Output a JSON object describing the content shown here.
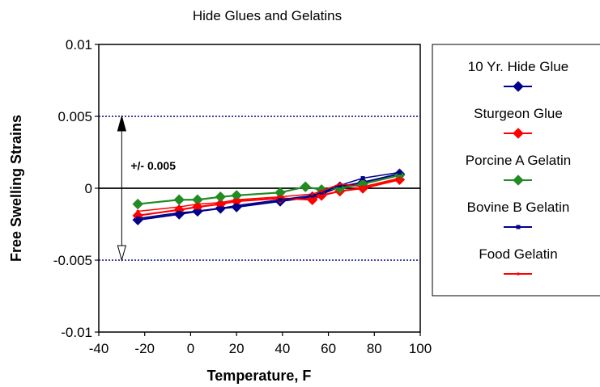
{
  "chart_data": {
    "type": "line",
    "title": "Hide Glues and Gelatins",
    "xlabel": "Temperature, F",
    "ylabel": "Free Swelling Strains",
    "xlim": [
      -40,
      100
    ],
    "ylim": [
      -0.01,
      0.01
    ],
    "xticks": [
      -40,
      -20,
      0,
      20,
      40,
      60,
      80,
      100
    ],
    "yticks": [
      {
        "value": -0.01,
        "label": "-0.01"
      },
      {
        "value": -0.005,
        "label": "-0.005"
      },
      {
        "value": 0,
        "label": "0"
      },
      {
        "value": 0.005,
        "label": "0.005"
      },
      {
        "value": 0.01,
        "label": "0.01"
      }
    ],
    "reference_lines": [
      0.005,
      -0.005
    ],
    "annotation": {
      "text": "+/- 0.005",
      "x": -30,
      "y_top": 0.005,
      "y_bottom": -0.005
    },
    "legend_position": "right",
    "series": [
      {
        "name": "10 Yr. Hide Glue",
        "color": "#00008b",
        "marker": "diamond",
        "x": [
          -23,
          -5,
          3,
          13,
          20,
          39,
          53,
          57,
          65,
          75,
          91
        ],
        "y": [
          -0.0022,
          -0.0018,
          -0.0016,
          -0.0014,
          -0.0013,
          -0.0009,
          -0.0006,
          -0.0004,
          0.0001,
          0.0004,
          0.001
        ]
      },
      {
        "name": "Sturgeon Glue",
        "color": "#ff0000",
        "marker": "diamond",
        "x": [
          -23,
          -5,
          3,
          13,
          20,
          39,
          53,
          57,
          65,
          75,
          91
        ],
        "y": [
          -0.0019,
          -0.0015,
          -0.0013,
          -0.0011,
          -0.0009,
          -0.0007,
          -0.0008,
          -0.0005,
          -0.0002,
          0.0,
          0.0006
        ]
      },
      {
        "name": "Porcine A Gelatin",
        "color": "#228b22",
        "marker": "diamond",
        "x": [
          -23,
          -5,
          3,
          13,
          20,
          39,
          50,
          57,
          65,
          75,
          91
        ],
        "y": [
          -0.0011,
          -0.0008,
          -0.0008,
          -0.0006,
          -0.0005,
          -0.0003,
          0.0001,
          -0.0001,
          0.0,
          0.0003,
          0.0009
        ]
      },
      {
        "name": "Bovine B Gelatin",
        "color": "#00008b",
        "marker": "square",
        "x": [
          -23,
          -5,
          3,
          13,
          20,
          39,
          53,
          57,
          65,
          75,
          91
        ],
        "y": [
          -0.0021,
          -0.0017,
          -0.0016,
          -0.0014,
          -0.0012,
          -0.0008,
          -0.0005,
          -0.0003,
          0.0002,
          0.0007,
          0.0011
        ]
      },
      {
        "name": "Food Gelatin",
        "color": "#ff0000",
        "marker": "dot",
        "x": [
          -23,
          -5,
          3,
          13,
          20,
          39,
          53,
          57,
          65,
          75,
          91
        ],
        "y": [
          -0.0016,
          -0.0013,
          -0.0011,
          -0.001,
          -0.0008,
          -0.0006,
          -0.0004,
          -0.0002,
          0.0003,
          0.0001,
          0.0007
        ]
      }
    ]
  }
}
